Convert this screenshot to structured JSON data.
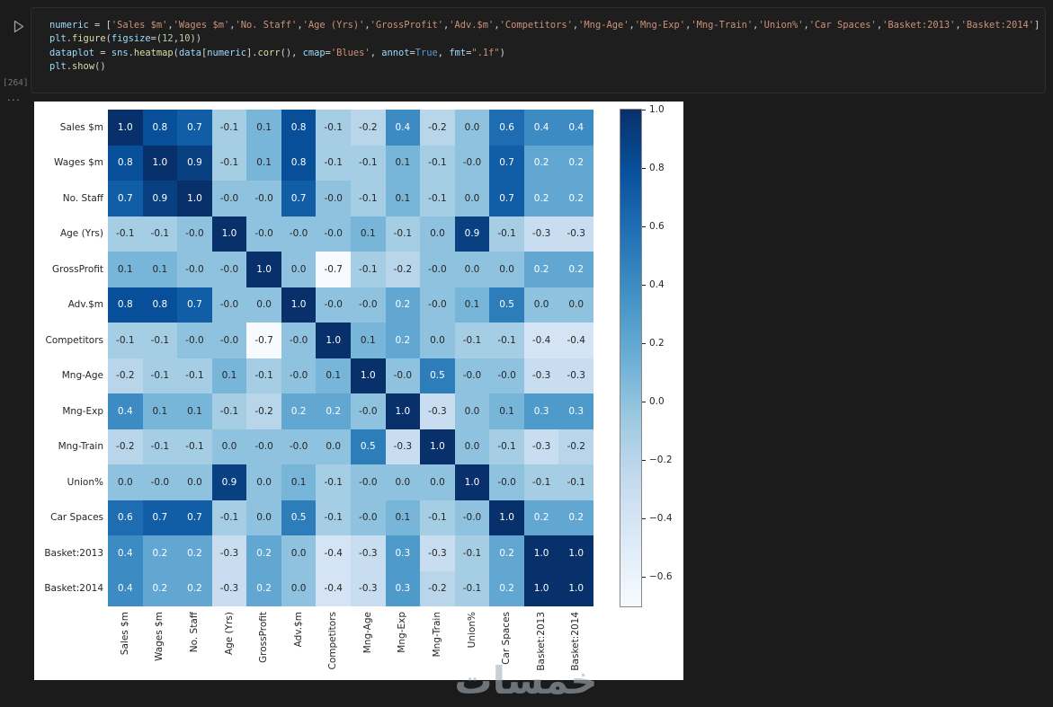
{
  "cell": {
    "execution_count": "[264]",
    "collapse_indicator": "...",
    "code_lines": [
      [
        [
          "numeric",
          "v"
        ],
        [
          " = [",
          "p"
        ],
        [
          "'Sales $m'",
          "s"
        ],
        [
          ",",
          "p"
        ],
        [
          "'Wages $m'",
          "s"
        ],
        [
          ",",
          "p"
        ],
        [
          "'No. Staff'",
          "s"
        ],
        [
          ",",
          "p"
        ],
        [
          "'Age (Yrs)'",
          "s"
        ],
        [
          ",",
          "p"
        ],
        [
          "'GrossProfit'",
          "s"
        ],
        [
          ",",
          "p"
        ],
        [
          "'Adv.$m'",
          "s"
        ],
        [
          ",",
          "p"
        ],
        [
          "'Competitors'",
          "s"
        ],
        [
          ",",
          "p"
        ],
        [
          "'Mng-Age'",
          "s"
        ],
        [
          ",",
          "p"
        ],
        [
          "'Mng-Exp'",
          "s"
        ],
        [
          ",",
          "p"
        ],
        [
          "'Mng-Train'",
          "s"
        ],
        [
          ",",
          "p"
        ],
        [
          "'Union%'",
          "s"
        ],
        [
          ",",
          "p"
        ],
        [
          "'Car Spaces'",
          "s"
        ],
        [
          ",",
          "p"
        ],
        [
          "'Basket:2013'",
          "s"
        ],
        [
          ",",
          "p"
        ],
        [
          "'Basket:2014'",
          "s"
        ],
        [
          "]",
          "p"
        ]
      ],
      [
        [
          "plt",
          "v"
        ],
        [
          ".",
          "p"
        ],
        [
          "figure",
          "f"
        ],
        [
          "(",
          "p"
        ],
        [
          "figsize",
          "v"
        ],
        [
          "=(",
          "p"
        ],
        [
          "12",
          "n"
        ],
        [
          ",",
          "p"
        ],
        [
          "10",
          "n"
        ],
        [
          "))",
          "p"
        ]
      ],
      [
        [
          "dataplot",
          "v"
        ],
        [
          " = ",
          "p"
        ],
        [
          "sns",
          "v"
        ],
        [
          ".",
          "p"
        ],
        [
          "heatmap",
          "f"
        ],
        [
          "(",
          "p"
        ],
        [
          "data",
          "v"
        ],
        [
          "[",
          "p"
        ],
        [
          "numeric",
          "v"
        ],
        [
          "].",
          "p"
        ],
        [
          "corr",
          "f"
        ],
        [
          "(), ",
          "p"
        ],
        [
          "cmap",
          "v"
        ],
        [
          "=",
          "p"
        ],
        [
          "'Blues'",
          "s"
        ],
        [
          ", ",
          "p"
        ],
        [
          "annot",
          "v"
        ],
        [
          "=",
          "p"
        ],
        [
          "True",
          "k"
        ],
        [
          ", ",
          "p"
        ],
        [
          "fmt",
          "v"
        ],
        [
          "=",
          "p"
        ],
        [
          "\".1f\"",
          "s"
        ],
        [
          ")",
          "p"
        ]
      ],
      [
        [
          "plt",
          "v"
        ],
        [
          ".",
          "p"
        ],
        [
          "show",
          "f"
        ],
        [
          "()",
          "p"
        ]
      ]
    ]
  },
  "chart_data": {
    "type": "heatmap",
    "title": "",
    "cmap": "Blues",
    "vmin": -0.7,
    "vmax": 1.0,
    "legend_position": "right-colorbar",
    "labels": [
      "Sales $m",
      "Wages $m",
      "No. Staff",
      "Age (Yrs)",
      "GrossProfit",
      "Adv.$m",
      "Competitors",
      "Mng-Age",
      "Mng-Exp",
      "Mng-Train",
      "Union%",
      "Car Spaces",
      "Basket:2013",
      "Basket:2014"
    ],
    "matrix": [
      [
        "1.0",
        "0.8",
        "0.7",
        "-0.1",
        "0.1",
        "0.8",
        "-0.1",
        "-0.2",
        "0.4",
        "-0.2",
        "0.0",
        "0.6",
        "0.4",
        "0.4"
      ],
      [
        "0.8",
        "1.0",
        "0.9",
        "-0.1",
        "0.1",
        "0.8",
        "-0.1",
        "-0.1",
        "0.1",
        "-0.1",
        "-0.0",
        "0.7",
        "0.2",
        "0.2"
      ],
      [
        "0.7",
        "0.9",
        "1.0",
        "-0.0",
        "-0.0",
        "0.7",
        "-0.0",
        "-0.1",
        "0.1",
        "-0.1",
        "0.0",
        "0.7",
        "0.2",
        "0.2"
      ],
      [
        "-0.1",
        "-0.1",
        "-0.0",
        "1.0",
        "-0.0",
        "-0.0",
        "-0.0",
        "0.1",
        "-0.1",
        "0.0",
        "0.9",
        "-0.1",
        "-0.3",
        "-0.3"
      ],
      [
        "0.1",
        "0.1",
        "-0.0",
        "-0.0",
        "1.0",
        "0.0",
        "-0.7",
        "-0.1",
        "-0.2",
        "-0.0",
        "0.0",
        "0.0",
        "0.2",
        "0.2"
      ],
      [
        "0.8",
        "0.8",
        "0.7",
        "-0.0",
        "0.0",
        "1.0",
        "-0.0",
        "-0.0",
        "0.2",
        "-0.0",
        "0.1",
        "0.5",
        "0.0",
        "0.0"
      ],
      [
        "-0.1",
        "-0.1",
        "-0.0",
        "-0.0",
        "-0.7",
        "-0.0",
        "1.0",
        "0.1",
        "0.2",
        "0.0",
        "-0.1",
        "-0.1",
        "-0.4",
        "-0.4"
      ],
      [
        "-0.2",
        "-0.1",
        "-0.1",
        "0.1",
        "-0.1",
        "-0.0",
        "0.1",
        "1.0",
        "-0.0",
        "0.5",
        "-0.0",
        "-0.0",
        "-0.3",
        "-0.3"
      ],
      [
        "0.4",
        "0.1",
        "0.1",
        "-0.1",
        "-0.2",
        "0.2",
        "0.2",
        "-0.0",
        "1.0",
        "-0.3",
        "0.0",
        "0.1",
        "0.3",
        "0.3"
      ],
      [
        "-0.2",
        "-0.1",
        "-0.1",
        "0.0",
        "-0.0",
        "-0.0",
        "0.0",
        "0.5",
        "-0.3",
        "1.0",
        "0.0",
        "-0.1",
        "-0.3",
        "-0.2"
      ],
      [
        "0.0",
        "-0.0",
        "0.0",
        "0.9",
        "0.0",
        "0.1",
        "-0.1",
        "-0.0",
        "0.0",
        "0.0",
        "1.0",
        "-0.0",
        "-0.1",
        "-0.1"
      ],
      [
        "0.6",
        "0.7",
        "0.7",
        "-0.1",
        "0.0",
        "0.5",
        "-0.1",
        "-0.0",
        "0.1",
        "-0.1",
        "-0.0",
        "1.0",
        "0.2",
        "0.2"
      ],
      [
        "0.4",
        "0.2",
        "0.2",
        "-0.3",
        "0.2",
        "0.0",
        "-0.4",
        "-0.3",
        "0.3",
        "-0.3",
        "-0.1",
        "0.2",
        "1.0",
        "1.0"
      ],
      [
        "0.4",
        "0.2",
        "0.2",
        "-0.3",
        "0.2",
        "0.0",
        "-0.4",
        "-0.3",
        "0.3",
        "-0.2",
        "-0.1",
        "0.2",
        "1.0",
        "1.0"
      ]
    ],
    "colorbar_ticks": [
      {
        "v": 1.0,
        "label": "1.0"
      },
      {
        "v": 0.8,
        "label": "0.8"
      },
      {
        "v": 0.6,
        "label": "0.6"
      },
      {
        "v": 0.4,
        "label": "0.4"
      },
      {
        "v": 0.2,
        "label": "0.2"
      },
      {
        "v": 0.0,
        "label": "0.0"
      },
      {
        "v": -0.2,
        "label": "−0.2"
      },
      {
        "v": -0.4,
        "label": "−0.4"
      },
      {
        "v": -0.6,
        "label": "−0.6"
      }
    ],
    "blues_stops": [
      [
        247,
        251,
        255
      ],
      [
        222,
        235,
        247
      ],
      [
        198,
        219,
        239
      ],
      [
        158,
        202,
        225
      ],
      [
        107,
        174,
        214
      ],
      [
        66,
        146,
        198
      ],
      [
        33,
        113,
        181
      ],
      [
        8,
        81,
        156
      ],
      [
        8,
        48,
        107
      ]
    ],
    "annot_text_dark": "#262626",
    "annot_text_light": "#ffffff"
  },
  "watermark": {
    "text": "خمسات"
  }
}
